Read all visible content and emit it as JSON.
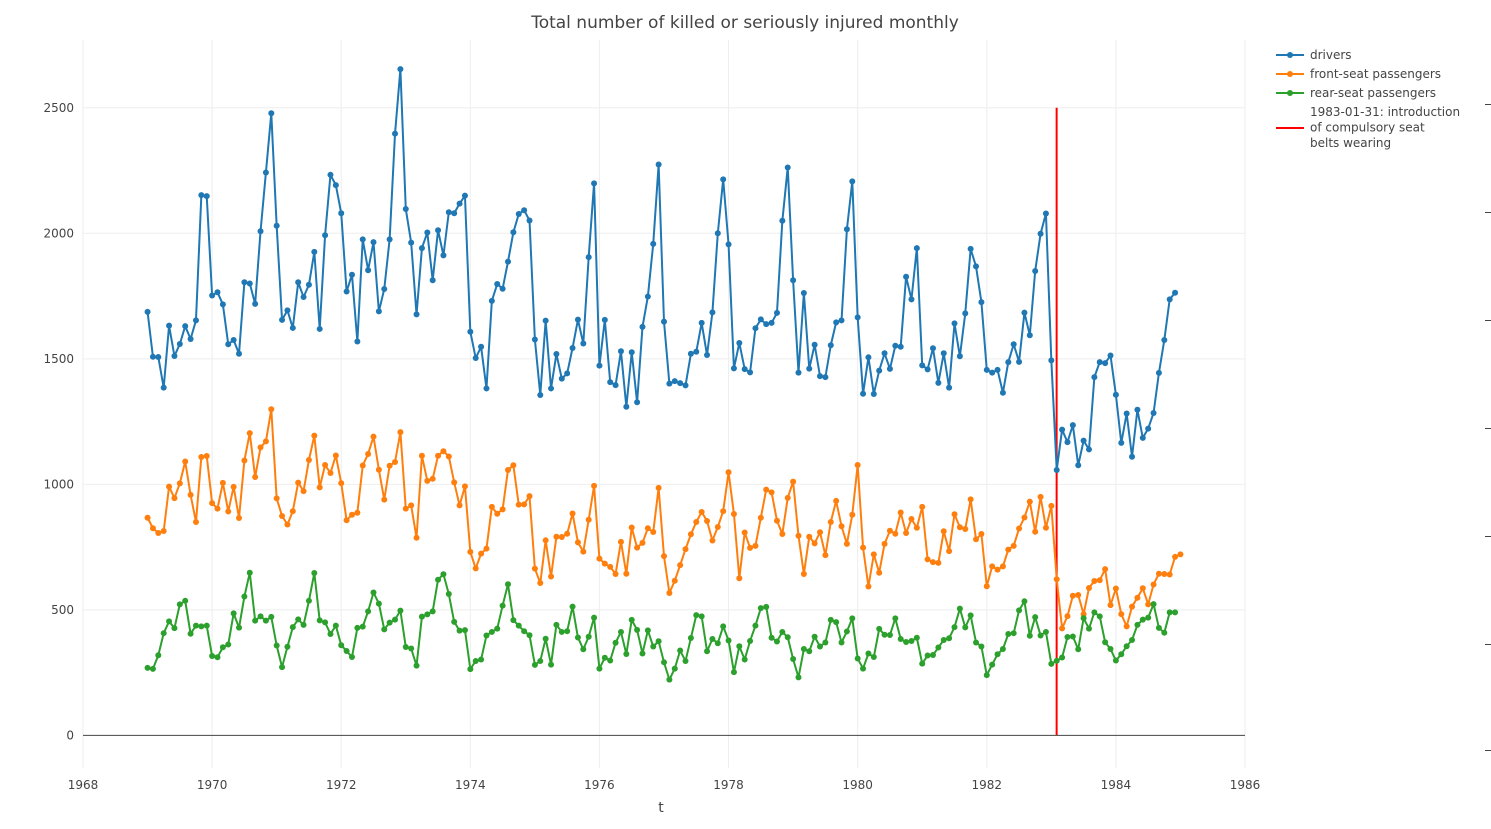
{
  "chart_data": {
    "type": "line",
    "title": "Total number of killed or seriously injured monthly",
    "xlabel": "t",
    "ylabel": "",
    "xlim": [
      1968,
      1986
    ],
    "ylim": [
      -130,
      2770
    ],
    "x_ticks": [
      1968,
      1970,
      1972,
      1974,
      1976,
      1978,
      1980,
      1982,
      1984,
      1986
    ],
    "x_tick_labels": [
      "1968",
      "1970",
      "1972",
      "1974",
      "1976",
      "1978",
      "1980",
      "1982",
      "1984",
      "1986"
    ],
    "y_ticks": [
      0,
      500,
      1000,
      1500,
      2000,
      2500
    ],
    "y_tick_labels": [
      "0",
      "500",
      "1000",
      "1500",
      "2000",
      "2500"
    ],
    "x_start": "1969-01",
    "x_step": "monthly",
    "grid": true,
    "legend_position": "top-right",
    "series": [
      {
        "name": "drivers",
        "color": "#1f77b4",
        "values": [
          1687,
          1508,
          1507,
          1385,
          1632,
          1511,
          1559,
          1630,
          1579,
          1653,
          2152,
          2148,
          1752,
          1765,
          1717,
          1558,
          1575,
          1520,
          1805,
          1800,
          1719,
          2008,
          2242,
          2478,
          2030,
          1655,
          1693,
          1623,
          1805,
          1746,
          1795,
          1926,
          1619,
          1992,
          2233,
          2192,
          2080,
          1768,
          1835,
          1569,
          1976,
          1853,
          1965,
          1689,
          1778,
          1976,
          2397,
          2654,
          2097,
          1963,
          1677,
          1941,
          2003,
          1813,
          2012,
          1912,
          2084,
          2080,
          2118,
          2150,
          1608,
          1503,
          1548,
          1382,
          1731,
          1798,
          1779,
          1887,
          2004,
          2077,
          2092,
          2051,
          1577,
          1356,
          1652,
          1382,
          1519,
          1421,
          1442,
          1543,
          1656,
          1561,
          1905,
          2199,
          1473,
          1655,
          1407,
          1395,
          1530,
          1309,
          1526,
          1327,
          1627,
          1748,
          1958,
          2274,
          1648,
          1401,
          1411,
          1403,
          1394,
          1520,
          1528,
          1643,
          1515,
          1685,
          2000,
          2215,
          1956,
          1462,
          1563,
          1459,
          1446,
          1622,
          1657,
          1638,
          1643,
          1683,
          2050,
          2262,
          1813,
          1445,
          1762,
          1461,
          1556,
          1431,
          1427,
          1554,
          1645,
          1653,
          2016,
          2207,
          1665,
          1361,
          1506,
          1360,
          1453,
          1522,
          1460,
          1552,
          1548,
          1827,
          1737,
          1941,
          1474,
          1458,
          1542,
          1404,
          1522,
          1385,
          1641,
          1510,
          1681,
          1938,
          1868,
          1726,
          1456,
          1445,
          1456,
          1365,
          1487,
          1558,
          1488,
          1684,
          1594,
          1850,
          1998,
          2079,
          1494,
          1057,
          1218,
          1168,
          1236,
          1076,
          1174,
          1139,
          1427,
          1487,
          1483,
          1513,
          1357,
          1165,
          1282,
          1110,
          1297,
          1185,
          1222,
          1284,
          1444,
          1575,
          1737,
          1763
        ]
      },
      {
        "name": "front-seat passengers",
        "color": "#ff7f0e",
        "values": [
          867,
          825,
          806,
          814,
          991,
          945,
          1004,
          1091,
          958,
          850,
          1109,
          1113,
          925,
          903,
          1006,
          892,
          990,
          866,
          1095,
          1204,
          1029,
          1147,
          1171,
          1299,
          944,
          874,
          840,
          893,
          1007,
          973,
          1097,
          1194,
          988,
          1077,
          1045,
          1115,
          1005,
          857,
          879,
          887,
          1075,
          1121,
          1190,
          1058,
          939,
          1074,
          1089,
          1208,
          903,
          916,
          787,
          1114,
          1014,
          1022,
          1114,
          1132,
          1111,
          1008,
          916,
          992,
          731,
          665,
          724,
          744,
          910,
          883,
          900,
          1057,
          1076,
          919,
          920,
          953,
          664,
          607,
          777,
          633,
          791,
          790,
          803,
          884,
          769,
          732,
          859,
          994,
          704,
          684,
          671,
          643,
          771,
          644,
          828,
          748,
          767,
          825,
          810,
          986,
          714,
          567,
          616,
          678,
          742,
          801,
          850,
          890,
          854,
          776,
          830,
          893,
          1048,
          882,
          626,
          808,
          747,
          755,
          867,
          979,
          968,
          855,
          802,
          946,
          1011,
          795,
          643,
          791,
          765,
          809,
          718,
          850,
          934,
          833,
          763,
          879,
          1077,
          748,
          593,
          721,
          648,
          763,
          815,
          803,
          888,
          806,
          862,
          827,
          910,
          701,
          690,
          687,
          813,
          734,
          881,
          829,
          822,
          940,
          781,
          802,
          594,
          673,
          660,
          673,
          740,
          755,
          824,
          868,
          931,
          811,
          950,
          827,
          914,
          622,
          426,
          475,
          556,
          559,
          483,
          587,
          615,
          618,
          662,
          519,
          585,
          483,
          434,
          513,
          548,
          586,
          522,
          601,
          644,
          643,
          641,
          711,
          721
        ]
      },
      {
        "name": "rear-seat passengers",
        "color": "#2ca02c",
        "values": [
          269,
          265,
          319,
          407,
          454,
          427,
          522,
          536,
          405,
          437,
          434,
          437,
          316,
          311,
          351,
          362,
          486,
          429,
          553,
          648,
          457,
          474,
          457,
          472,
          358,
          272,
          353,
          431,
          462,
          440,
          536,
          647,
          458,
          450,
          404,
          437,
          359,
          336,
          312,
          428,
          433,
          494,
          569,
          525,
          422,
          449,
          461,
          497,
          352,
          346,
          278,
          473,
          482,
          494,
          620,
          642,
          563,
          452,
          417,
          419,
          264,
          296,
          302,
          398,
          412,
          425,
          517,
          602,
          459,
          437,
          415,
          399,
          281,
          296,
          385,
          282,
          440,
          412,
          415,
          513,
          390,
          343,
          393,
          469,
          266,
          309,
          298,
          369,
          412,
          324,
          460,
          420,
          326,
          418,
          354,
          375,
          291,
          222,
          266,
          338,
          296,
          388,
          479,
          474,
          335,
          384,
          367,
          434,
          378,
          252,
          355,
          302,
          376,
          437,
          507,
          512,
          389,
          374,
          412,
          391,
          304,
          231,
          344,
          335,
          393,
          354,
          370,
          460,
          451,
          370,
          414,
          466,
          306,
          266,
          326,
          312,
          424,
          401,
          400,
          466,
          384,
          372,
          376,
          389,
          286,
          318,
          320,
          350,
          380,
          387,
          431,
          505,
          430,
          478,
          370,
          354,
          240,
          282,
          323,
          344,
          404,
          407,
          498,
          534,
          397,
          471,
          398,
          412,
          285,
          297,
          310,
          392,
          394,
          343,
          467,
          425,
          490,
          474,
          371,
          344,
          298,
          323,
          355,
          380,
          440,
          461,
          469,
          523,
          428,
          409,
          490,
          490
        ]
      }
    ],
    "vline": {
      "name": "1983-01-31: introduction of compulsory seat belts wearing",
      "x": "1983-01-31",
      "y_range": [
        0,
        2500
      ],
      "color": "#ff0000"
    }
  },
  "legend": {
    "items": [
      {
        "label": "drivers",
        "color": "#1f77b4"
      },
      {
        "label": "front-seat passengers",
        "color": "#ff7f0e"
      },
      {
        "label": "rear-seat passengers",
        "color": "#2ca02c"
      }
    ],
    "vline_label_lines": [
      "1983-01-31: introduction",
      "of compulsory seat",
      "belts wearing"
    ],
    "vline_color": "#ff0000"
  }
}
